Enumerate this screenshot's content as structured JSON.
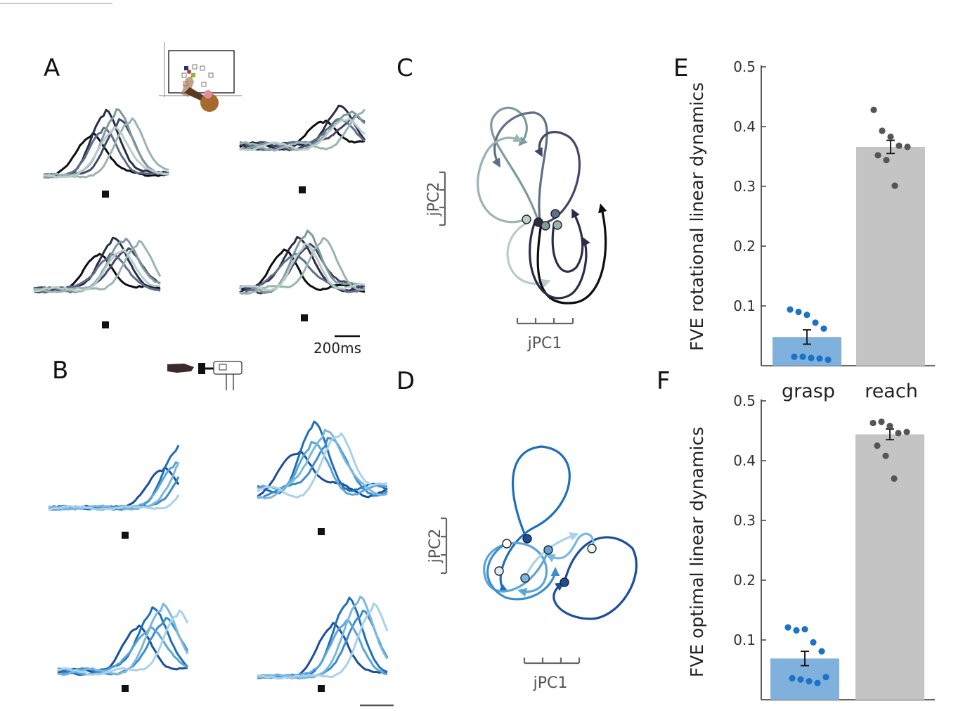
{
  "panels": {
    "A": "A",
    "B": "B",
    "C": "C",
    "D": "D",
    "E": "E",
    "F": "F"
  },
  "scale_bar_label": "200ms",
  "jpc1_label": "jPC1",
  "jpc2_label": "jPC2",
  "colors": {
    "reach_traces": [
      "#0d0d12",
      "#2c2c48",
      "#44466a",
      "#5f6f8a",
      "#7f9a9e",
      "#9ab4b2",
      "#b9cdca"
    ],
    "grasp_traces": [
      "#1b4e9b",
      "#1f6fb8",
      "#3b8dcc",
      "#5aa6d9",
      "#7ab8de",
      "#a9d1ec"
    ],
    "grasp_bar": "#7fb1dc",
    "reach_bar": "#c4c4c4",
    "grasp_dots": "#1a73c6",
    "reach_dots": "#555555"
  },
  "chart_data": [
    {
      "panel": "E",
      "type": "bar",
      "categories": [
        "grasp",
        "reach"
      ],
      "ylabel": "FVE rotational linear dynamics",
      "ylim": [
        0,
        0.5
      ],
      "yticks": [
        0.1,
        0.2,
        0.3,
        0.4,
        0.5
      ],
      "ytick_labels": [
        "0.1",
        "0.2",
        "0.3",
        "0.4",
        "0.5"
      ],
      "values": [
        0.048,
        0.366
      ],
      "errors": [
        0.012,
        0.011
      ],
      "points": [
        [
          0.094,
          0.09,
          0.085,
          0.072,
          0.062,
          0.015,
          0.015,
          0.013,
          0.012,
          0.01
        ],
        [
          0.428,
          0.393,
          0.383,
          0.368,
          0.366,
          0.352,
          0.344,
          0.301
        ]
      ]
    },
    {
      "panel": "F",
      "type": "bar",
      "categories": [
        "grasp",
        "reach"
      ],
      "ylabel": "FVE optimal linear dynamics",
      "ylim": [
        0,
        0.5
      ],
      "yticks": [
        0.1,
        0.2,
        0.3,
        0.4,
        0.5
      ],
      "ytick_labels": [
        "0.1",
        "0.2",
        "0.3",
        "0.4",
        "0.5"
      ],
      "values": [
        0.069,
        0.444
      ],
      "errors": [
        0.012,
        0.009
      ],
      "points": [
        [
          0.121,
          0.116,
          0.118,
          0.096,
          0.081,
          0.036,
          0.034,
          0.031,
          0.028,
          0.038
        ],
        [
          0.463,
          0.465,
          0.458,
          0.446,
          0.448,
          0.425,
          0.408,
          0.37
        ]
      ]
    }
  ]
}
